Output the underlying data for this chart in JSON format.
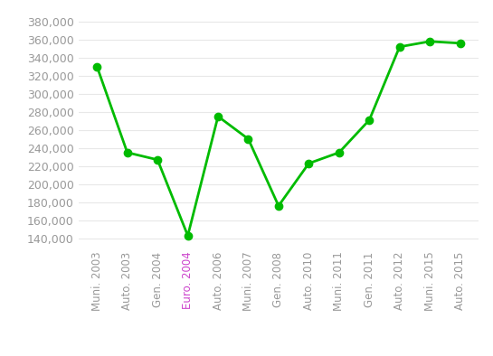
{
  "x_labels": [
    "Muni. 2003",
    "Auto. 2003",
    "Gen. 2004",
    "Euro. 2004",
    "Auto. 2006",
    "Muni. 2007",
    "Gen. 2008",
    "Auto. 2010",
    "Muni. 2011",
    "Gen. 2011",
    "Auto. 2012",
    "Muni. 2015",
    "Auto. 2015"
  ],
  "y_values": [
    330000,
    235000,
    227000,
    143000,
    275000,
    250000,
    176000,
    223000,
    235000,
    271000,
    352000,
    358000,
    356000
  ],
  "line_color": "#00bb00",
  "marker_color": "#00bb00",
  "marker_size": 6,
  "line_width": 2,
  "yticks": [
    140000,
    160000,
    180000,
    200000,
    220000,
    240000,
    260000,
    280000,
    300000,
    320000,
    340000,
    360000,
    380000
  ],
  "ylim": [
    128000,
    392000
  ],
  "euro2004_label_color": "#cc44cc",
  "background_color": "#ffffff",
  "grid_color": "#e8e8e8",
  "tick_label_color": "#999999",
  "tick_label_fontsize": 8.5,
  "ytick_label_fontsize": 9
}
